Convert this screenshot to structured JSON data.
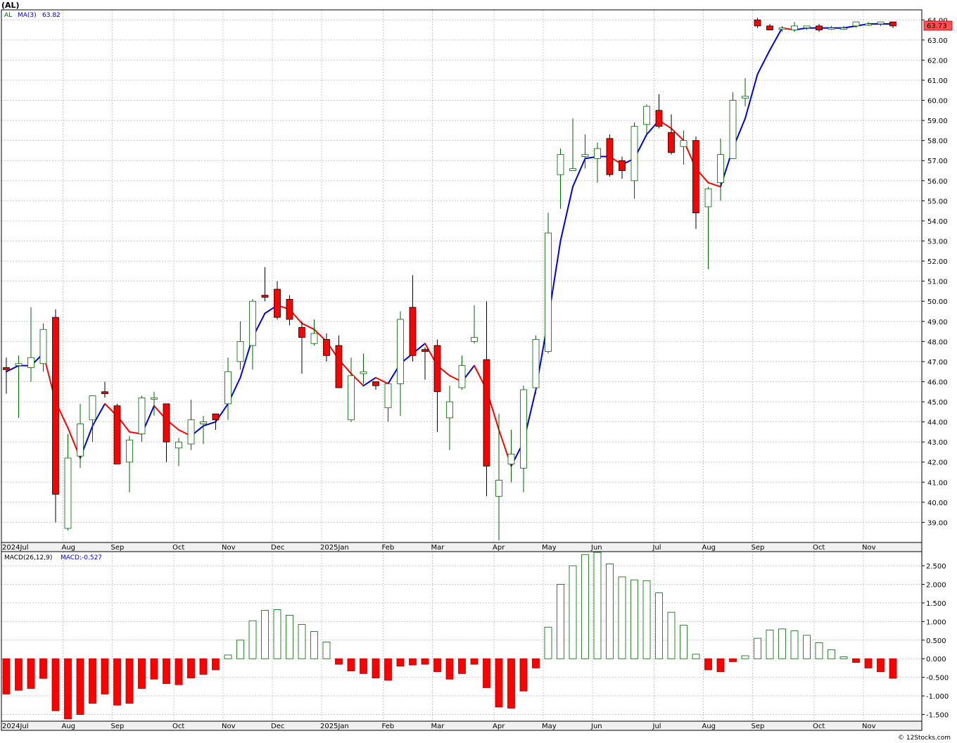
{
  "chart_data": {
    "type": "candlestick",
    "title": "(AL)",
    "legend": {
      "symbol": "AL",
      "ma_label": "MA(3)",
      "ma_value": "63.82"
    },
    "last_price_label": "63.73",
    "colors": {
      "up": "#006400",
      "down": "#ff0000",
      "ma_up": "#0000dd",
      "ma_down": "#ff0000",
      "grid": "#c8c8c8"
    },
    "price_axis": {
      "min": 38,
      "max": 64.5,
      "ticks": [
        "39.00",
        "40.00",
        "41.00",
        "42.00",
        "43.00",
        "44.00",
        "45.00",
        "46.00",
        "47.00",
        "48.00",
        "49.00",
        "50.00",
        "51.00",
        "52.00",
        "53.00",
        "54.00",
        "55.00",
        "56.00",
        "57.00",
        "58.00",
        "59.00",
        "60.00",
        "61.00",
        "62.00",
        "63.00",
        "64.00"
      ]
    },
    "months": [
      {
        "label": "2024Jul",
        "i": 0
      },
      {
        "label": "Aug",
        "i": 5
      },
      {
        "label": "Sep",
        "i": 9
      },
      {
        "label": "Oct",
        "i": 14
      },
      {
        "label": "Nov",
        "i": 18
      },
      {
        "label": "Dec",
        "i": 22
      },
      {
        "label": "2025Jan",
        "i": 26
      },
      {
        "label": "Feb",
        "i": 31
      },
      {
        "label": "Mar",
        "i": 35
      },
      {
        "label": "Apr",
        "i": 40
      },
      {
        "label": "May",
        "i": 44
      },
      {
        "label": "Jun",
        "i": 48
      },
      {
        "label": "Jul",
        "i": 53
      },
      {
        "label": "Aug",
        "i": 57
      },
      {
        "label": "Sep",
        "i": 61
      },
      {
        "label": "Oct",
        "i": 66
      },
      {
        "label": "Nov",
        "i": 70
      }
    ],
    "candles": [
      {
        "o": 46.7,
        "h": 47.2,
        "l": 45.4,
        "c": 46.6
      },
      {
        "o": 46.8,
        "h": 47.3,
        "l": 44.2,
        "c": 46.9
      },
      {
        "o": 46.7,
        "h": 49.7,
        "l": 46.0,
        "c": 47.2
      },
      {
        "o": 46.9,
        "h": 48.9,
        "l": 46.5,
        "c": 48.6
      },
      {
        "o": 49.2,
        "h": 49.6,
        "l": 39.0,
        "c": 40.4
      },
      {
        "o": 38.7,
        "h": 43.4,
        "l": 38.6,
        "c": 42.2
      },
      {
        "o": 42.3,
        "h": 44.9,
        "l": 41.7,
        "c": 43.9
      },
      {
        "o": 44.1,
        "h": 45.3,
        "l": 43.0,
        "c": 45.3
      },
      {
        "o": 45.5,
        "h": 46.0,
        "l": 45.2,
        "c": 45.4
      },
      {
        "o": 44.8,
        "h": 44.9,
        "l": 41.9,
        "c": 41.9
      },
      {
        "o": 42.0,
        "h": 43.3,
        "l": 40.5,
        "c": 43.1
      },
      {
        "o": 43.4,
        "h": 45.3,
        "l": 43.0,
        "c": 45.2
      },
      {
        "o": 45.2,
        "h": 45.5,
        "l": 44.3,
        "c": 45.2
      },
      {
        "o": 44.9,
        "h": 44.9,
        "l": 42.0,
        "c": 43.0
      },
      {
        "o": 42.7,
        "h": 43.2,
        "l": 41.8,
        "c": 43.0
      },
      {
        "o": 42.9,
        "h": 45.1,
        "l": 42.6,
        "c": 44.1
      },
      {
        "o": 43.9,
        "h": 44.3,
        "l": 42.9,
        "c": 44.0
      },
      {
        "o": 44.4,
        "h": 44.4,
        "l": 43.6,
        "c": 44.1
      },
      {
        "o": 44.9,
        "h": 47.2,
        "l": 44.1,
        "c": 46.5
      },
      {
        "o": 47.0,
        "h": 49.0,
        "l": 46.6,
        "c": 48.0
      },
      {
        "o": 47.8,
        "h": 50.1,
        "l": 46.6,
        "c": 50.0
      },
      {
        "o": 50.3,
        "h": 51.7,
        "l": 50.0,
        "c": 50.2
      },
      {
        "o": 50.6,
        "h": 51.0,
        "l": 49.1,
        "c": 49.2
      },
      {
        "o": 50.1,
        "h": 50.3,
        "l": 48.8,
        "c": 49.1
      },
      {
        "o": 48.7,
        "h": 49.0,
        "l": 46.4,
        "c": 48.2
      },
      {
        "o": 47.9,
        "h": 49.1,
        "l": 47.8,
        "c": 48.4
      },
      {
        "o": 48.1,
        "h": 48.4,
        "l": 47.0,
        "c": 47.3
      },
      {
        "o": 47.8,
        "h": 48.3,
        "l": 45.7,
        "c": 45.7
      },
      {
        "o": 44.1,
        "h": 47.2,
        "l": 44.0,
        "c": 46.3
      },
      {
        "o": 46.4,
        "h": 47.4,
        "l": 45.9,
        "c": 46.5
      },
      {
        "o": 46.0,
        "h": 46.0,
        "l": 45.6,
        "c": 45.8
      },
      {
        "o": 44.7,
        "h": 45.9,
        "l": 44.0,
        "c": 45.9
      },
      {
        "o": 45.9,
        "h": 49.5,
        "l": 44.3,
        "c": 49.1
      },
      {
        "o": 49.7,
        "h": 51.3,
        "l": 47.0,
        "c": 47.3
      },
      {
        "o": 47.6,
        "h": 47.7,
        "l": 46.1,
        "c": 47.5
      },
      {
        "o": 47.8,
        "h": 48.1,
        "l": 43.5,
        "c": 45.5
      },
      {
        "o": 44.2,
        "h": 45.8,
        "l": 42.6,
        "c": 45.0
      },
      {
        "o": 45.7,
        "h": 47.3,
        "l": 45.6,
        "c": 46.8
      },
      {
        "o": 48.0,
        "h": 49.8,
        "l": 47.9,
        "c": 48.2
      },
      {
        "o": 47.1,
        "h": 50.0,
        "l": 40.3,
        "c": 41.8
      },
      {
        "o": 40.3,
        "h": 44.4,
        "l": 38.1,
        "c": 41.1
      },
      {
        "o": 41.9,
        "h": 43.6,
        "l": 41.0,
        "c": 42.4
      },
      {
        "o": 41.7,
        "h": 45.8,
        "l": 40.5,
        "c": 45.6
      },
      {
        "o": 45.7,
        "h": 48.3,
        "l": 45.4,
        "c": 48.1
      },
      {
        "o": 47.5,
        "h": 54.4,
        "l": 47.4,
        "c": 53.4
      },
      {
        "o": 56.3,
        "h": 57.6,
        "l": 54.6,
        "c": 57.3
      },
      {
        "o": 56.5,
        "h": 59.1,
        "l": 56.5,
        "c": 56.6
      },
      {
        "o": 57.2,
        "h": 58.3,
        "l": 56.6,
        "c": 57.3
      },
      {
        "o": 57.1,
        "h": 57.9,
        "l": 55.9,
        "c": 57.6
      },
      {
        "o": 58.1,
        "h": 58.3,
        "l": 56.2,
        "c": 56.3
      },
      {
        "o": 57.0,
        "h": 57.2,
        "l": 56.1,
        "c": 56.5
      },
      {
        "o": 56.0,
        "h": 58.9,
        "l": 55.1,
        "c": 58.7
      },
      {
        "o": 58.8,
        "h": 59.8,
        "l": 58.2,
        "c": 59.7
      },
      {
        "o": 59.5,
        "h": 60.3,
        "l": 58.6,
        "c": 58.7
      },
      {
        "o": 58.4,
        "h": 59.3,
        "l": 57.3,
        "c": 57.4
      },
      {
        "o": 57.7,
        "h": 58.5,
        "l": 56.8,
        "c": 58.0
      },
      {
        "o": 58.0,
        "h": 58.2,
        "l": 53.6,
        "c": 54.4
      },
      {
        "o": 54.7,
        "h": 55.7,
        "l": 51.6,
        "c": 55.6
      },
      {
        "o": 55.9,
        "h": 58.1,
        "l": 55.0,
        "c": 57.3
      },
      {
        "o": 57.1,
        "h": 60.4,
        "l": 57.1,
        "c": 60.0
      },
      {
        "o": 60.1,
        "h": 61.1,
        "l": 59.7,
        "c": 60.2
      },
      {
        "o": 64.0,
        "h": 64.1,
        "l": 63.6,
        "c": 63.7
      },
      {
        "o": 63.7,
        "h": 63.8,
        "l": 63.5,
        "c": 63.5
      },
      {
        "o": 63.6,
        "h": 63.7,
        "l": 63.4,
        "c": 63.6
      },
      {
        "o": 63.5,
        "h": 63.9,
        "l": 63.4,
        "c": 63.7
      },
      {
        "o": 63.6,
        "h": 63.7,
        "l": 63.5,
        "c": 63.7
      },
      {
        "o": 63.7,
        "h": 63.8,
        "l": 63.4,
        "c": 63.5
      },
      {
        "o": 63.6,
        "h": 63.7,
        "l": 63.5,
        "c": 63.6
      },
      {
        "o": 63.6,
        "h": 63.7,
        "l": 63.5,
        "c": 63.6
      },
      {
        "o": 63.7,
        "h": 63.9,
        "l": 63.6,
        "c": 63.9
      },
      {
        "o": 63.8,
        "h": 63.9,
        "l": 63.7,
        "c": 63.8
      },
      {
        "o": 63.8,
        "h": 63.9,
        "l": 63.7,
        "c": 63.9
      },
      {
        "o": 63.9,
        "h": 63.9,
        "l": 63.6,
        "c": 63.7
      }
    ],
    "ma": [
      46.5,
      46.8,
      46.8,
      47.4,
      45.0,
      43.7,
      42.2,
      43.8,
      44.9,
      44.3,
      43.5,
      43.4,
      44.8,
      44.1,
      43.6,
      43.3,
      43.8,
      44.0,
      44.9,
      46.2,
      48.2,
      49.4,
      49.8,
      49.6,
      48.9,
      48.6,
      48.0,
      47.1,
      46.4,
      45.8,
      46.2,
      45.9,
      46.9,
      47.4,
      47.9,
      46.8,
      46.3,
      46.0,
      46.8,
      45.6,
      43.6,
      41.8,
      43.0,
      45.6,
      49.1,
      53.0,
      55.7,
      57.1,
      57.2,
      57.2,
      56.8,
      57.1,
      58.3,
      59.0,
      58.6,
      58.0,
      56.6,
      55.9,
      55.7,
      57.6,
      59.1,
      61.3,
      62.5,
      63.6,
      63.5,
      63.6,
      63.6,
      63.6,
      63.6,
      63.7,
      63.8,
      63.8,
      63.8
    ],
    "macd": {
      "label": "MACD(26,12,9)",
      "value_label": "MACD:-0.527",
      "axis": {
        "min": -1.68,
        "max": 2.88,
        "ticks": [
          "-1.500",
          "-1.000",
          "-0.500",
          "0.000",
          "0.500",
          "1.000",
          "1.500",
          "2.000",
          "2.500"
        ]
      },
      "values": [
        -0.95,
        -0.85,
        -0.8,
        -0.53,
        -1.4,
        -1.62,
        -1.5,
        -1.2,
        -0.95,
        -1.25,
        -1.2,
        -0.8,
        -0.55,
        -0.67,
        -0.7,
        -0.52,
        -0.42,
        -0.3,
        0.1,
        0.5,
        1.02,
        1.3,
        1.32,
        1.17,
        0.92,
        0.73,
        0.45,
        -0.15,
        -0.33,
        -0.4,
        -0.52,
        -0.58,
        -0.2,
        -0.17,
        -0.15,
        -0.35,
        -0.55,
        -0.4,
        -0.15,
        -0.78,
        -1.3,
        -1.33,
        -0.87,
        -0.25,
        0.85,
        2.0,
        2.5,
        2.8,
        2.86,
        2.55,
        2.2,
        2.12,
        2.1,
        1.77,
        1.25,
        0.9,
        0.12,
        -0.3,
        -0.35,
        -0.08,
        0.08,
        0.55,
        0.77,
        0.8,
        0.75,
        0.63,
        0.43,
        0.24,
        0.05,
        -0.1,
        -0.25,
        -0.35,
        -0.527
      ]
    },
    "credit": "© 12Stocks.com"
  }
}
